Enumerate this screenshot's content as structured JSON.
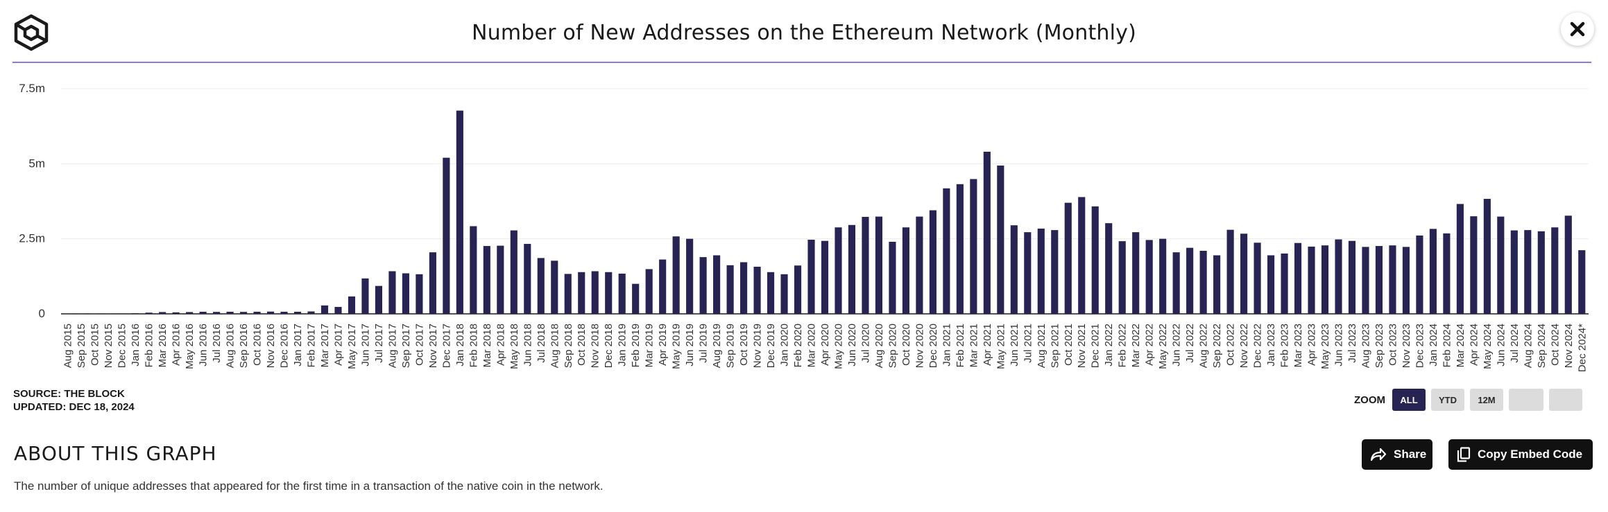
{
  "header": {
    "title": "Number of New Addresses on the Ethereum Network (Monthly)",
    "logo_icon": "cube-logo-icon",
    "close_icon": "close-icon"
  },
  "footer": {
    "source": "SOURCE: THE BLOCK",
    "updated": "UPDATED: DEC 18, 2024"
  },
  "zoom": {
    "label": "ZOOM",
    "buttons": [
      "ALL",
      "YTD",
      "12M",
      "",
      ""
    ],
    "active": "ALL"
  },
  "about": {
    "heading": "ABOUT THIS GRAPH",
    "description": "The number of unique addresses that appeared for the first time in a transaction of the native coin in the network."
  },
  "actions": {
    "share_label": "Share",
    "embed_label": "Copy Embed Code"
  },
  "colors": {
    "bar": "#272353",
    "accent_rule": "#8b7ad8",
    "active_zoom": "#272353"
  },
  "chart_data": {
    "type": "bar",
    "title": "Number of New Addresses on the Ethereum Network (Monthly)",
    "ylim": [
      0,
      7500000
    ],
    "yticks": [
      0,
      2500000,
      5000000,
      7500000
    ],
    "ytick_labels": [
      "0",
      "2.5m",
      "5m",
      "7.5m"
    ],
    "grid": true,
    "categories": [
      "Aug 2015",
      "Sep 2015",
      "Oct 2015",
      "Nov 2015",
      "Dec 2015",
      "Jan 2016",
      "Feb 2016",
      "Mar 2016",
      "Apr 2016",
      "May 2016",
      "Jun 2016",
      "Jul 2016",
      "Aug 2016",
      "Sep 2016",
      "Oct 2016",
      "Nov 2016",
      "Dec 2016",
      "Jan 2017",
      "Feb 2017",
      "Mar 2017",
      "Apr 2017",
      "May 2017",
      "Jun 2017",
      "Jul 2017",
      "Aug 2017",
      "Sep 2017",
      "Oct 2017",
      "Nov 2017",
      "Dec 2017",
      "Jan 2018",
      "Feb 2018",
      "Mar 2018",
      "Apr 2018",
      "May 2018",
      "Jun 2018",
      "Jul 2018",
      "Aug 2018",
      "Sep 2018",
      "Oct 2018",
      "Nov 2018",
      "Dec 2018",
      "Jan 2019",
      "Feb 2019",
      "Mar 2019",
      "Apr 2019",
      "May 2019",
      "Jun 2019",
      "Jul 2019",
      "Aug 2019",
      "Sep 2019",
      "Oct 2019",
      "Nov 2019",
      "Dec 2019",
      "Jan 2020",
      "Feb 2020",
      "Mar 2020",
      "Apr 2020",
      "May 2020",
      "Jun 2020",
      "Jul 2020",
      "Aug 2020",
      "Sep 2020",
      "Oct 2020",
      "Nov 2020",
      "Dec 2020",
      "Jan 2021",
      "Feb 2021",
      "Mar 2021",
      "Apr 2021",
      "May 2021",
      "Jun 2021",
      "Jul 2021",
      "Aug 2021",
      "Sep 2021",
      "Oct 2021",
      "Nov 2021",
      "Dec 2021",
      "Jan 2022",
      "Feb 2022",
      "Mar 2022",
      "Apr 2022",
      "May 2022",
      "Jun 2022",
      "Jul 2022",
      "Aug 2022",
      "Sep 2022",
      "Oct 2022",
      "Nov 2022",
      "Dec 2022",
      "Jan 2023",
      "Feb 2023",
      "Mar 2023",
      "Apr 2023",
      "May 2023",
      "Jun 2023",
      "Jul 2023",
      "Aug 2023",
      "Sep 2023",
      "Oct 2023",
      "Nov 2023",
      "Dec 2023",
      "Jan 2024",
      "Feb 2024",
      "Mar 2024",
      "Apr 2024",
      "May 2024",
      "Jun 2024",
      "Jul 2024",
      "Aug 2024",
      "Sep 2024",
      "Oct 2024",
      "Nov 2024",
      "Dec 2024*"
    ],
    "values": [
      5000,
      8000,
      10000,
      12000,
      14000,
      20000,
      40000,
      60000,
      50000,
      60000,
      70000,
      65000,
      70000,
      65000,
      70000,
      75000,
      70000,
      70000,
      80000,
      280000,
      230000,
      580000,
      1180000,
      930000,
      1420000,
      1350000,
      1320000,
      2050000,
      5200000,
      6770000,
      2920000,
      2260000,
      2270000,
      2780000,
      2330000,
      1860000,
      1770000,
      1330000,
      1390000,
      1420000,
      1390000,
      1340000,
      1000000,
      1490000,
      1810000,
      2580000,
      2500000,
      1890000,
      1950000,
      1620000,
      1720000,
      1570000,
      1390000,
      1320000,
      1610000,
      2470000,
      2430000,
      2880000,
      2960000,
      3230000,
      3240000,
      2400000,
      2880000,
      3240000,
      3450000,
      4180000,
      4320000,
      4490000,
      5400000,
      4940000,
      2950000,
      2720000,
      2840000,
      2790000,
      3700000,
      3890000,
      3580000,
      3020000,
      2420000,
      2720000,
      2460000,
      2500000,
      2050000,
      2200000,
      2100000,
      1950000,
      2800000,
      2670000,
      2370000,
      1950000,
      2010000,
      2360000,
      2240000,
      2280000,
      2480000,
      2430000,
      2230000,
      2260000,
      2280000,
      2230000,
      2610000,
      2830000,
      2680000,
      3660000,
      3250000,
      3830000,
      3240000,
      2780000,
      2790000,
      2750000,
      2880000,
      3270000,
      2120000
    ]
  }
}
